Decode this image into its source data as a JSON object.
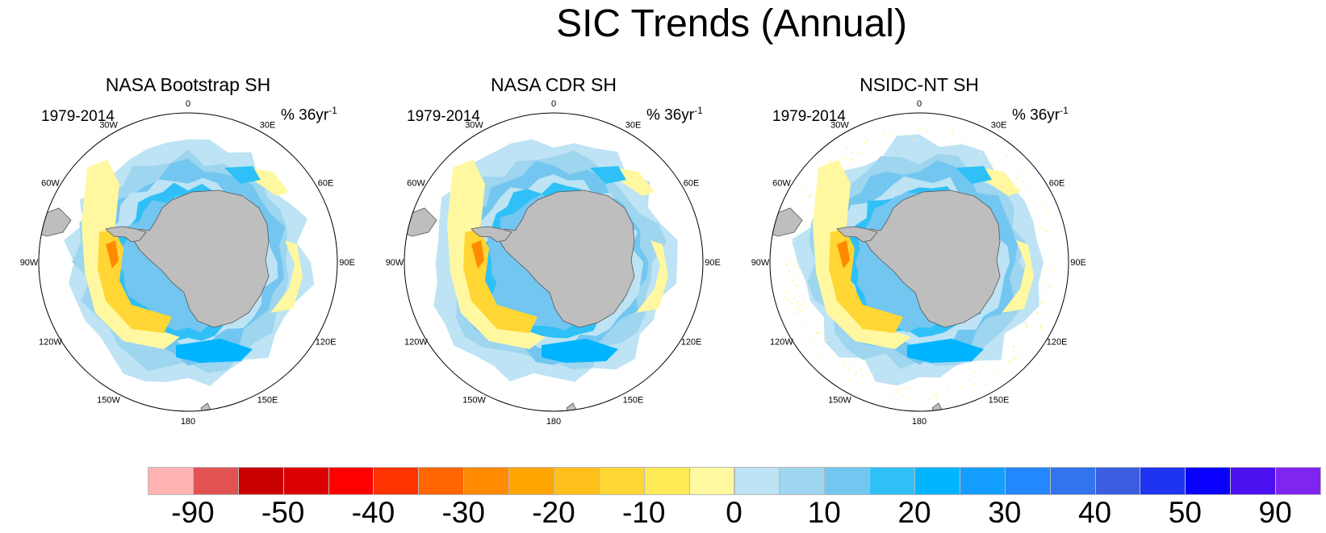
{
  "title": "SIC Trends (Annual)",
  "panels": [
    {
      "title": "NASA Bootstrap SH",
      "period": "1979-2014",
      "units": "% 36yr",
      "units_sup": "-1"
    },
    {
      "title": "NASA CDR SH",
      "period": "1979-2014",
      "units": "% 36yr",
      "units_sup": "-1"
    },
    {
      "title": "NSIDC-NT SH",
      "period": "1979-2014",
      "units": "% 36yr",
      "units_sup": "-1"
    }
  ],
  "longitude_labels": [
    "0",
    "30E",
    "60E",
    "90E",
    "120E",
    "150E",
    "180",
    "150W",
    "120W",
    "90W",
    "60W",
    "30W"
  ],
  "colorbar": {
    "colors": [
      "#ffb3b3",
      "#e15353",
      "#c80000",
      "#dc0000",
      "#ff0000",
      "#ff3300",
      "#ff6600",
      "#ff8a00",
      "#ffa500",
      "#ffbf1a",
      "#ffd633",
      "#ffea55",
      "#fff8a0",
      "#bde3f4",
      "#9ed5ef",
      "#73c6f0",
      "#2fc0f7",
      "#00b4ff",
      "#149eff",
      "#2388ff",
      "#3273ee",
      "#3b5ee0",
      "#1f34f0",
      "#0a00ff",
      "#4a10f0",
      "#8025f0"
    ],
    "labels": [
      "-90",
      "-50",
      "-40",
      "-30",
      "-20",
      "-10",
      "0",
      "10",
      "20",
      "30",
      "40",
      "50",
      "90"
    ]
  },
  "legend_colors": {
    "land": "#bebebe",
    "ocean": "#ffffff"
  }
}
